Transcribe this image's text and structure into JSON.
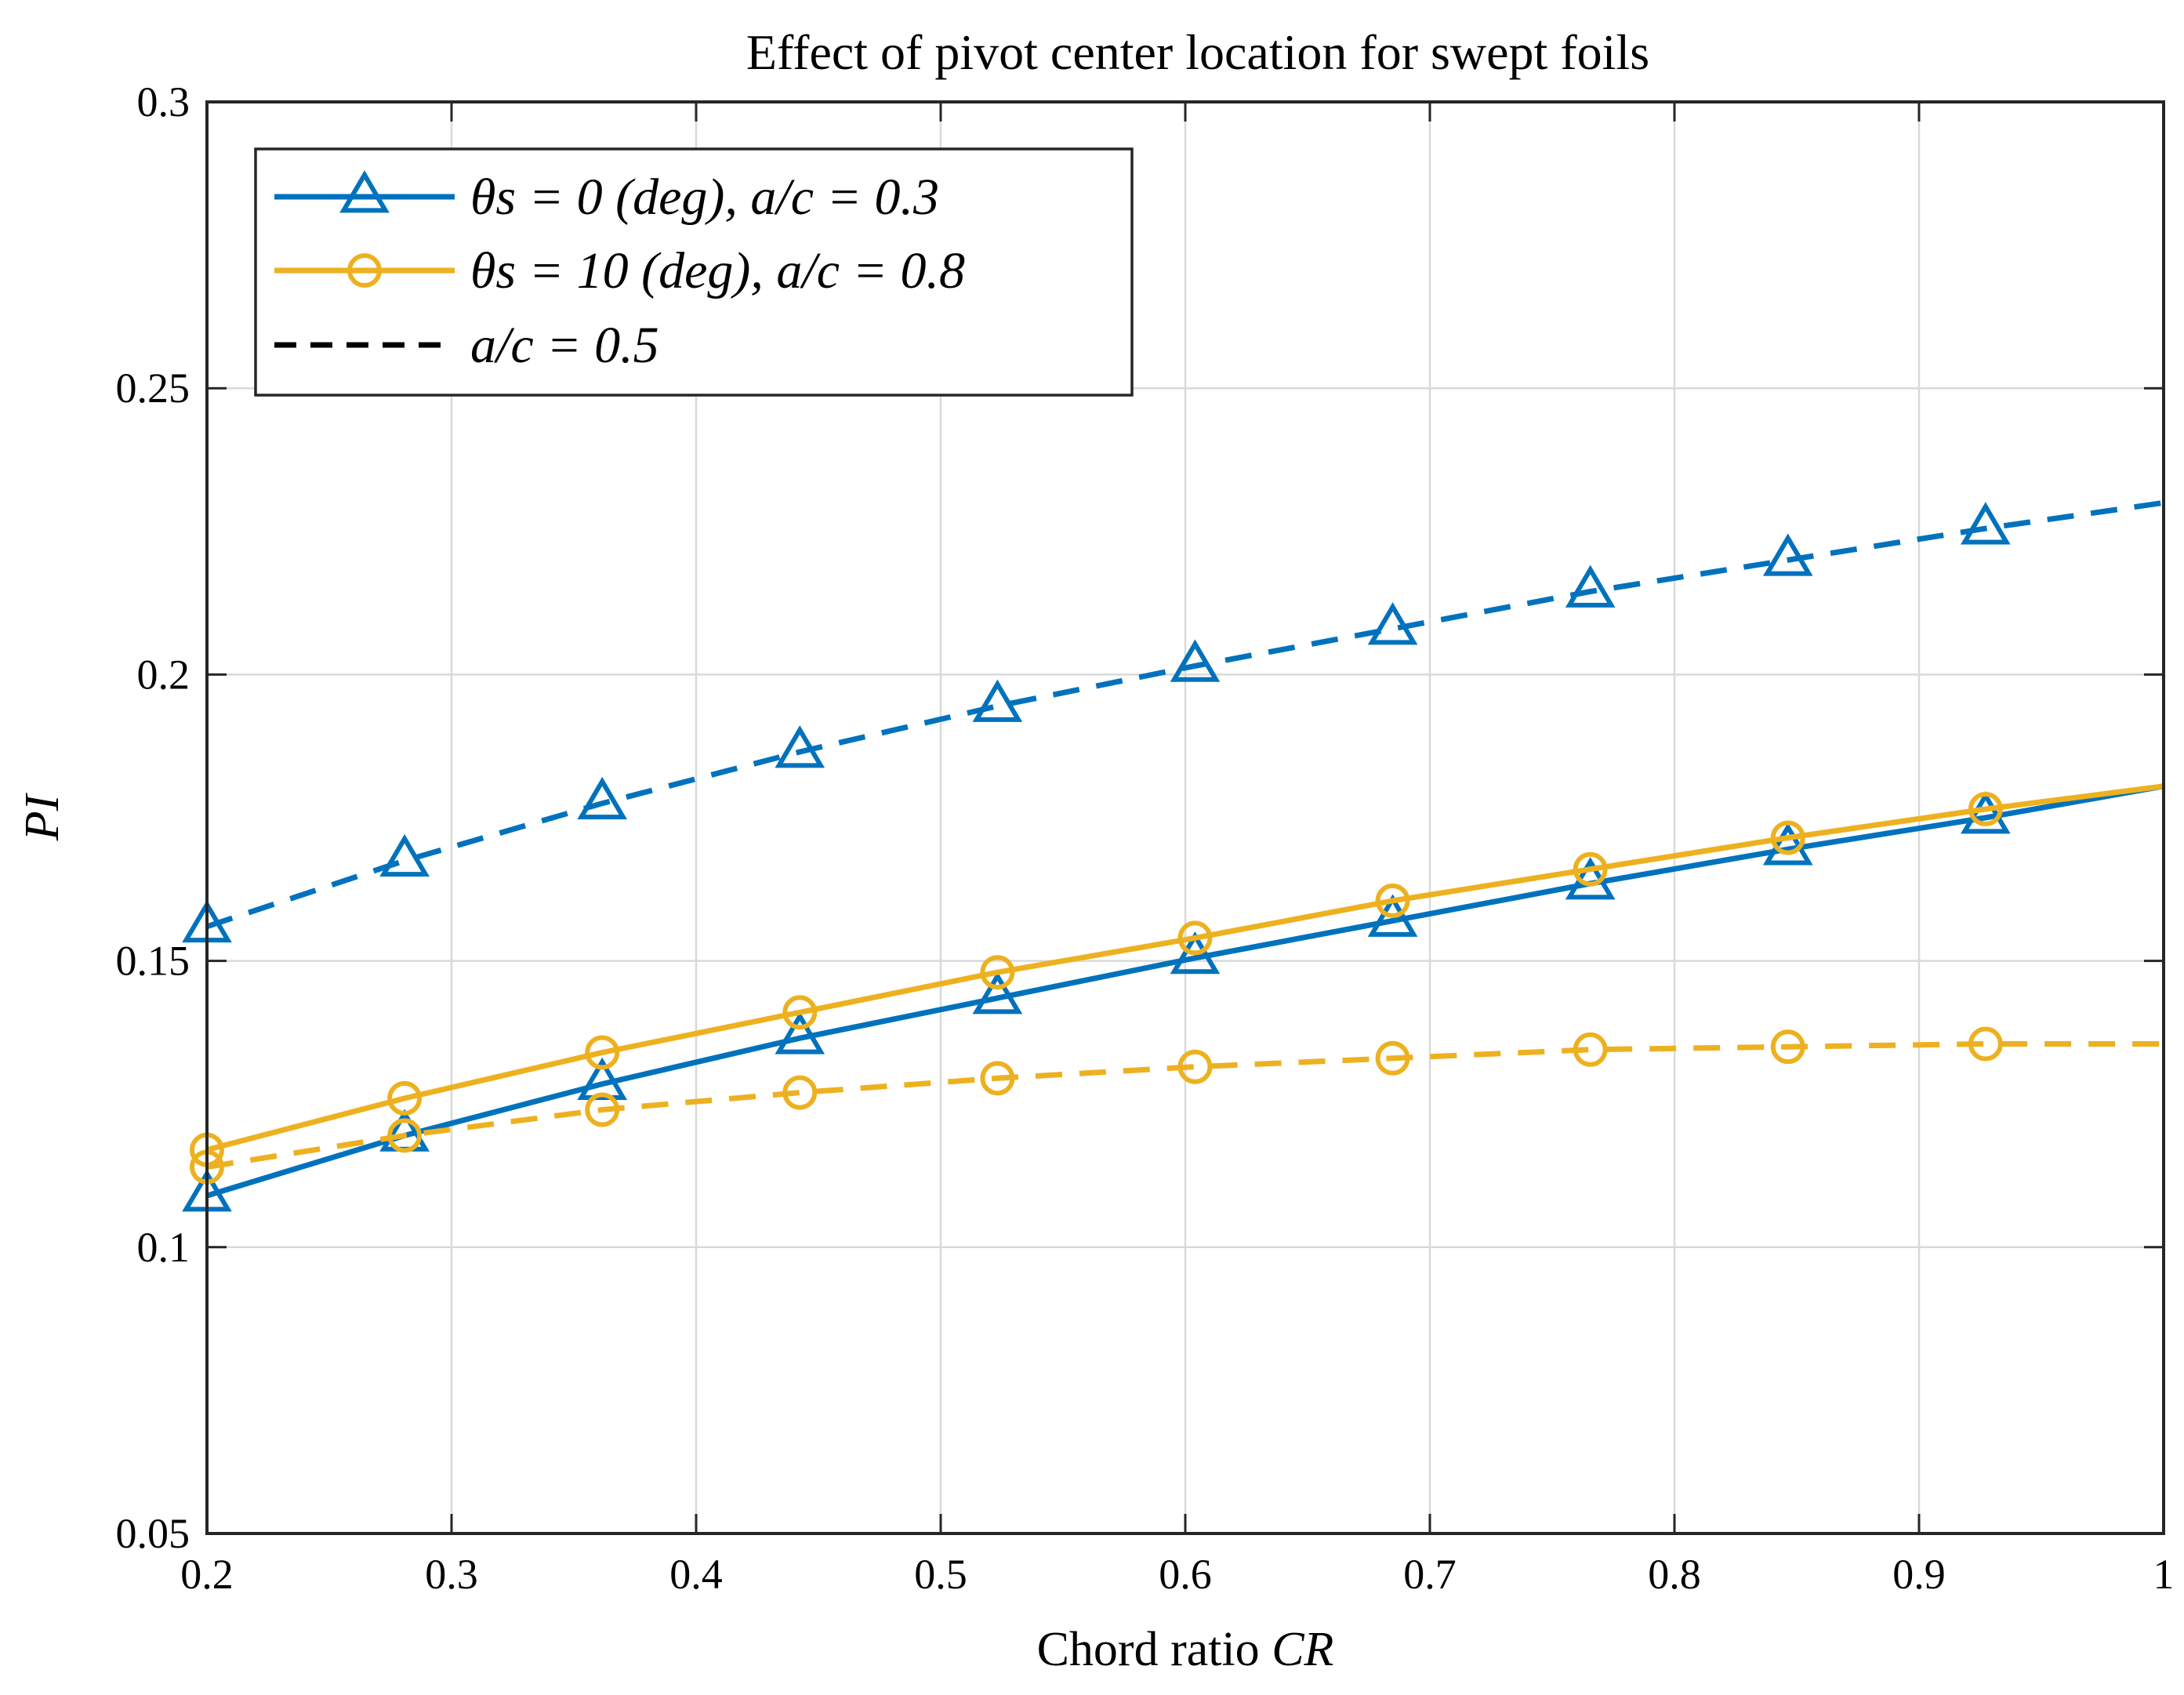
{
  "chart_data": {
    "type": "line",
    "title": "Effect of pivot center location for swept foils",
    "xlabel": "Chord ratio CR",
    "xlabel_plain": "Chord ratio ",
    "xlabel_var": "CR",
    "ylabel": "PI",
    "xlim": [
      0.2,
      1.0
    ],
    "ylim": [
      0.05,
      0.3
    ],
    "xticks": [
      0.2,
      0.3,
      0.4,
      0.5,
      0.6,
      0.7,
      0.8,
      0.9,
      1.0
    ],
    "xtick_labels": [
      "0.2",
      "0.3",
      "0.4",
      "0.5",
      "0.6",
      "0.7",
      "0.8",
      "0.9",
      "1"
    ],
    "yticks": [
      0.05,
      0.1,
      0.15,
      0.2,
      0.25,
      0.3
    ],
    "ytick_labels": [
      "0.05",
      "0.1",
      "0.15",
      "0.2",
      "0.25",
      "0.3"
    ],
    "grid": true,
    "legend_position": "top-left",
    "legend": [
      {
        "label": "θs = 0 (deg), a/c = 0.3",
        "color": "#0072BD",
        "marker": "triangle",
        "style": "solid"
      },
      {
        "label": "θs = 10 (deg), a/c = 0.8",
        "color": "#EDB120",
        "marker": "circle",
        "style": "solid"
      },
      {
        "label": "a/c = 0.5",
        "color": "#000000",
        "marker": "none",
        "style": "dashed"
      }
    ],
    "x": [
      0.2,
      0.2808,
      0.3616,
      0.4424,
      0.5232,
      0.604,
      0.6848,
      0.7656,
      0.8464,
      0.9272,
      1.0
    ],
    "series": [
      {
        "name": "θs = 0 (deg), a/c = 0.3",
        "color": "#0072BD",
        "marker": "triangle",
        "style": "solid",
        "values": [
          0.109,
          0.1195,
          0.1285,
          0.1365,
          0.1435,
          0.1505,
          0.157,
          0.1635,
          0.1695,
          0.175,
          0.1805
        ]
      },
      {
        "name": "θs = 0 (deg), a/c = 0.5",
        "color": "#0072BD",
        "marker": "triangle",
        "style": "dashed",
        "values": [
          0.156,
          0.1675,
          0.1775,
          0.1865,
          0.1945,
          0.2015,
          0.208,
          0.2145,
          0.22,
          0.2255,
          0.23
        ]
      },
      {
        "name": "θs = 10 (deg), a/c = 0.8",
        "color": "#EDB120",
        "marker": "circle",
        "style": "solid",
        "values": [
          0.117,
          0.126,
          0.134,
          0.141,
          0.148,
          0.154,
          0.1605,
          0.166,
          0.1715,
          0.1765,
          0.1805
        ]
      },
      {
        "name": "θs = 10 (deg), a/c = 0.5",
        "color": "#EDB120",
        "marker": "circle",
        "style": "dashed",
        "values": [
          0.114,
          0.1195,
          0.124,
          0.127,
          0.1295,
          0.1315,
          0.133,
          0.1345,
          0.135,
          0.1355,
          0.1355
        ]
      }
    ]
  }
}
